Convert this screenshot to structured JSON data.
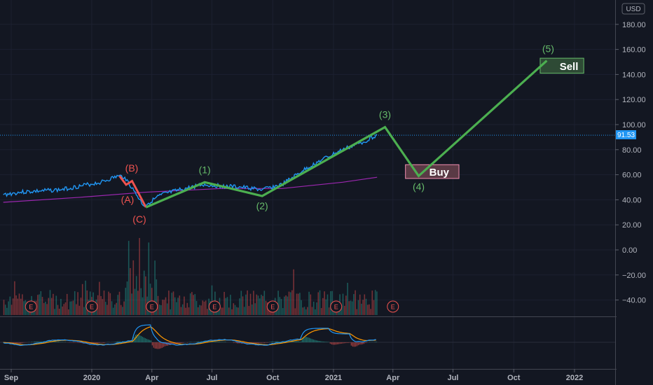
{
  "chart_data": {
    "type": "line",
    "currency": "USD",
    "last_price": "91.53",
    "y_ticks": [
      "180.00",
      "160.00",
      "140.00",
      "120.00",
      "100.00",
      "80.00",
      "60.00",
      "40.00",
      "20.00",
      "0.00",
      "−20.00",
      "−40.00"
    ],
    "y_tick_values": [
      180,
      160,
      140,
      120,
      100,
      80,
      60,
      40,
      20,
      0,
      -20,
      -40
    ],
    "x_ticks": [
      "Sep",
      "2020",
      "Apr",
      "Jul",
      "Oct",
      "2021",
      "Apr",
      "Jul",
      "Oct",
      "2022"
    ],
    "ylim": [
      -52,
      198
    ],
    "price_series": {
      "x": [
        "2019-08-20",
        "2019-09-15",
        "2019-10-15",
        "2019-11-15",
        "2019-12-15",
        "2020-01-15",
        "2020-02-10",
        "2020-02-20",
        "2020-03-05",
        "2020-03-20",
        "2020-04-15",
        "2020-05-15",
        "2020-06-15",
        "2020-07-15",
        "2020-08-15",
        "2020-09-15",
        "2020-10-15",
        "2020-11-15",
        "2020-12-15",
        "2021-01-15",
        "2021-02-15",
        "2021-03-08"
      ],
      "values": [
        44,
        46,
        47,
        48,
        51,
        54,
        59,
        58,
        47,
        35,
        44,
        48,
        52,
        51,
        50,
        48,
        52,
        63,
        72,
        80,
        86,
        92
      ]
    },
    "moving_average": {
      "x": [
        "2019-08-20",
        "2019-12-15",
        "2020-03-20",
        "2020-07-15",
        "2020-10-15",
        "2021-01-15",
        "2021-03-08"
      ],
      "values": [
        38,
        42,
        46,
        49,
        49,
        54,
        58
      ]
    },
    "elliott_corrective": {
      "labels": [
        "(A)",
        "(B)",
        "(C)"
      ],
      "x": [
        "2020-02-12",
        "2020-02-22",
        "2020-03-02",
        "2020-03-23"
      ],
      "values": [
        59,
        52,
        55,
        34
      ]
    },
    "elliott_impulse": {
      "labels": [
        "(1)",
        "(2)",
        "(3)",
        "(4)",
        "(5)"
      ],
      "x": [
        "2020-03-23",
        "2020-06-20",
        "2020-09-15",
        "2021-03-20",
        "2021-05-10",
        "2021-11-20"
      ],
      "values": [
        34,
        54,
        43,
        98,
        59,
        151
      ]
    },
    "buy_zone": {
      "label": "Buy",
      "x_range": [
        "2021-04-20",
        "2021-07-10"
      ],
      "y_range": [
        57,
        68
      ]
    },
    "sell_zone": {
      "label": "Sell",
      "x_range": [
        "2021-11-10",
        "2022-01-15"
      ],
      "y_range": [
        141,
        153
      ]
    },
    "earnings_marker": "E",
    "earnings_dates": [
      "2019-10-01",
      "2020-01-01",
      "2020-04-01",
      "2020-07-05",
      "2020-10-01",
      "2021-01-05",
      "2021-04-01"
    ],
    "colors": {
      "background": "#131722",
      "price": "#2196f3",
      "moving_average": "#9c27b0",
      "impulse": "#4caf50",
      "impulse_label": "#66bb6a",
      "corrective": "#ef5350",
      "buy_fill": "#5a3a45",
      "buy_border": "#f48fb1",
      "sell_fill": "#2e4a35",
      "sell_border": "#66bb6a",
      "last_price_badge": "#2196f3",
      "volume_up": "#26a69a",
      "volume_down": "#ef5350",
      "macd": "#2196f3",
      "signal": "#ff9800"
    }
  }
}
